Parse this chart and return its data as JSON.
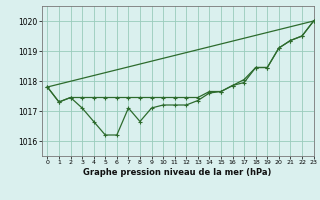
{
  "title": "Graphe pression niveau de la mer (hPa)",
  "bg_color": "#daf0ee",
  "grid_color": "#99ccbb",
  "line_color": "#2d6b2d",
  "marker_color": "#2d6b2d",
  "ylim": [
    1015.5,
    1020.5
  ],
  "xlim": [
    -0.5,
    23
  ],
  "yticks": [
    1016,
    1017,
    1018,
    1019,
    1020
  ],
  "xticks": [
    0,
    1,
    2,
    3,
    4,
    5,
    6,
    7,
    8,
    9,
    10,
    11,
    12,
    13,
    14,
    15,
    16,
    17,
    18,
    19,
    20,
    21,
    22,
    23
  ],
  "series1_x": [
    0,
    1,
    2,
    3,
    4,
    5,
    6,
    7,
    8,
    9,
    10,
    11,
    12,
    13,
    14,
    15,
    16,
    17,
    18,
    19,
    20,
    21,
    22,
    23
  ],
  "series1_y": [
    1017.8,
    1017.3,
    1017.45,
    1017.1,
    1016.65,
    1016.2,
    1016.2,
    1017.1,
    1016.65,
    1017.1,
    1017.2,
    1017.2,
    1017.2,
    1017.35,
    1017.6,
    1017.65,
    1017.85,
    1017.95,
    1018.45,
    1018.45,
    1019.1,
    1019.35,
    1019.5,
    1020.0
  ],
  "series2_x": [
    0,
    1,
    2,
    3,
    4,
    5,
    6,
    7,
    8,
    9,
    10,
    11,
    12,
    13,
    14,
    15,
    16,
    17,
    18,
    19,
    20,
    21,
    22,
    23
  ],
  "series2_y": [
    1017.8,
    1017.3,
    1017.45,
    1017.45,
    1017.45,
    1017.45,
    1017.45,
    1017.45,
    1017.45,
    1017.45,
    1017.45,
    1017.45,
    1017.45,
    1017.45,
    1017.65,
    1017.65,
    1017.85,
    1018.05,
    1018.45,
    1018.45,
    1019.1,
    1019.35,
    1019.5,
    1020.0
  ],
  "series3_x": [
    0,
    23
  ],
  "series3_y": [
    1017.8,
    1020.0
  ]
}
